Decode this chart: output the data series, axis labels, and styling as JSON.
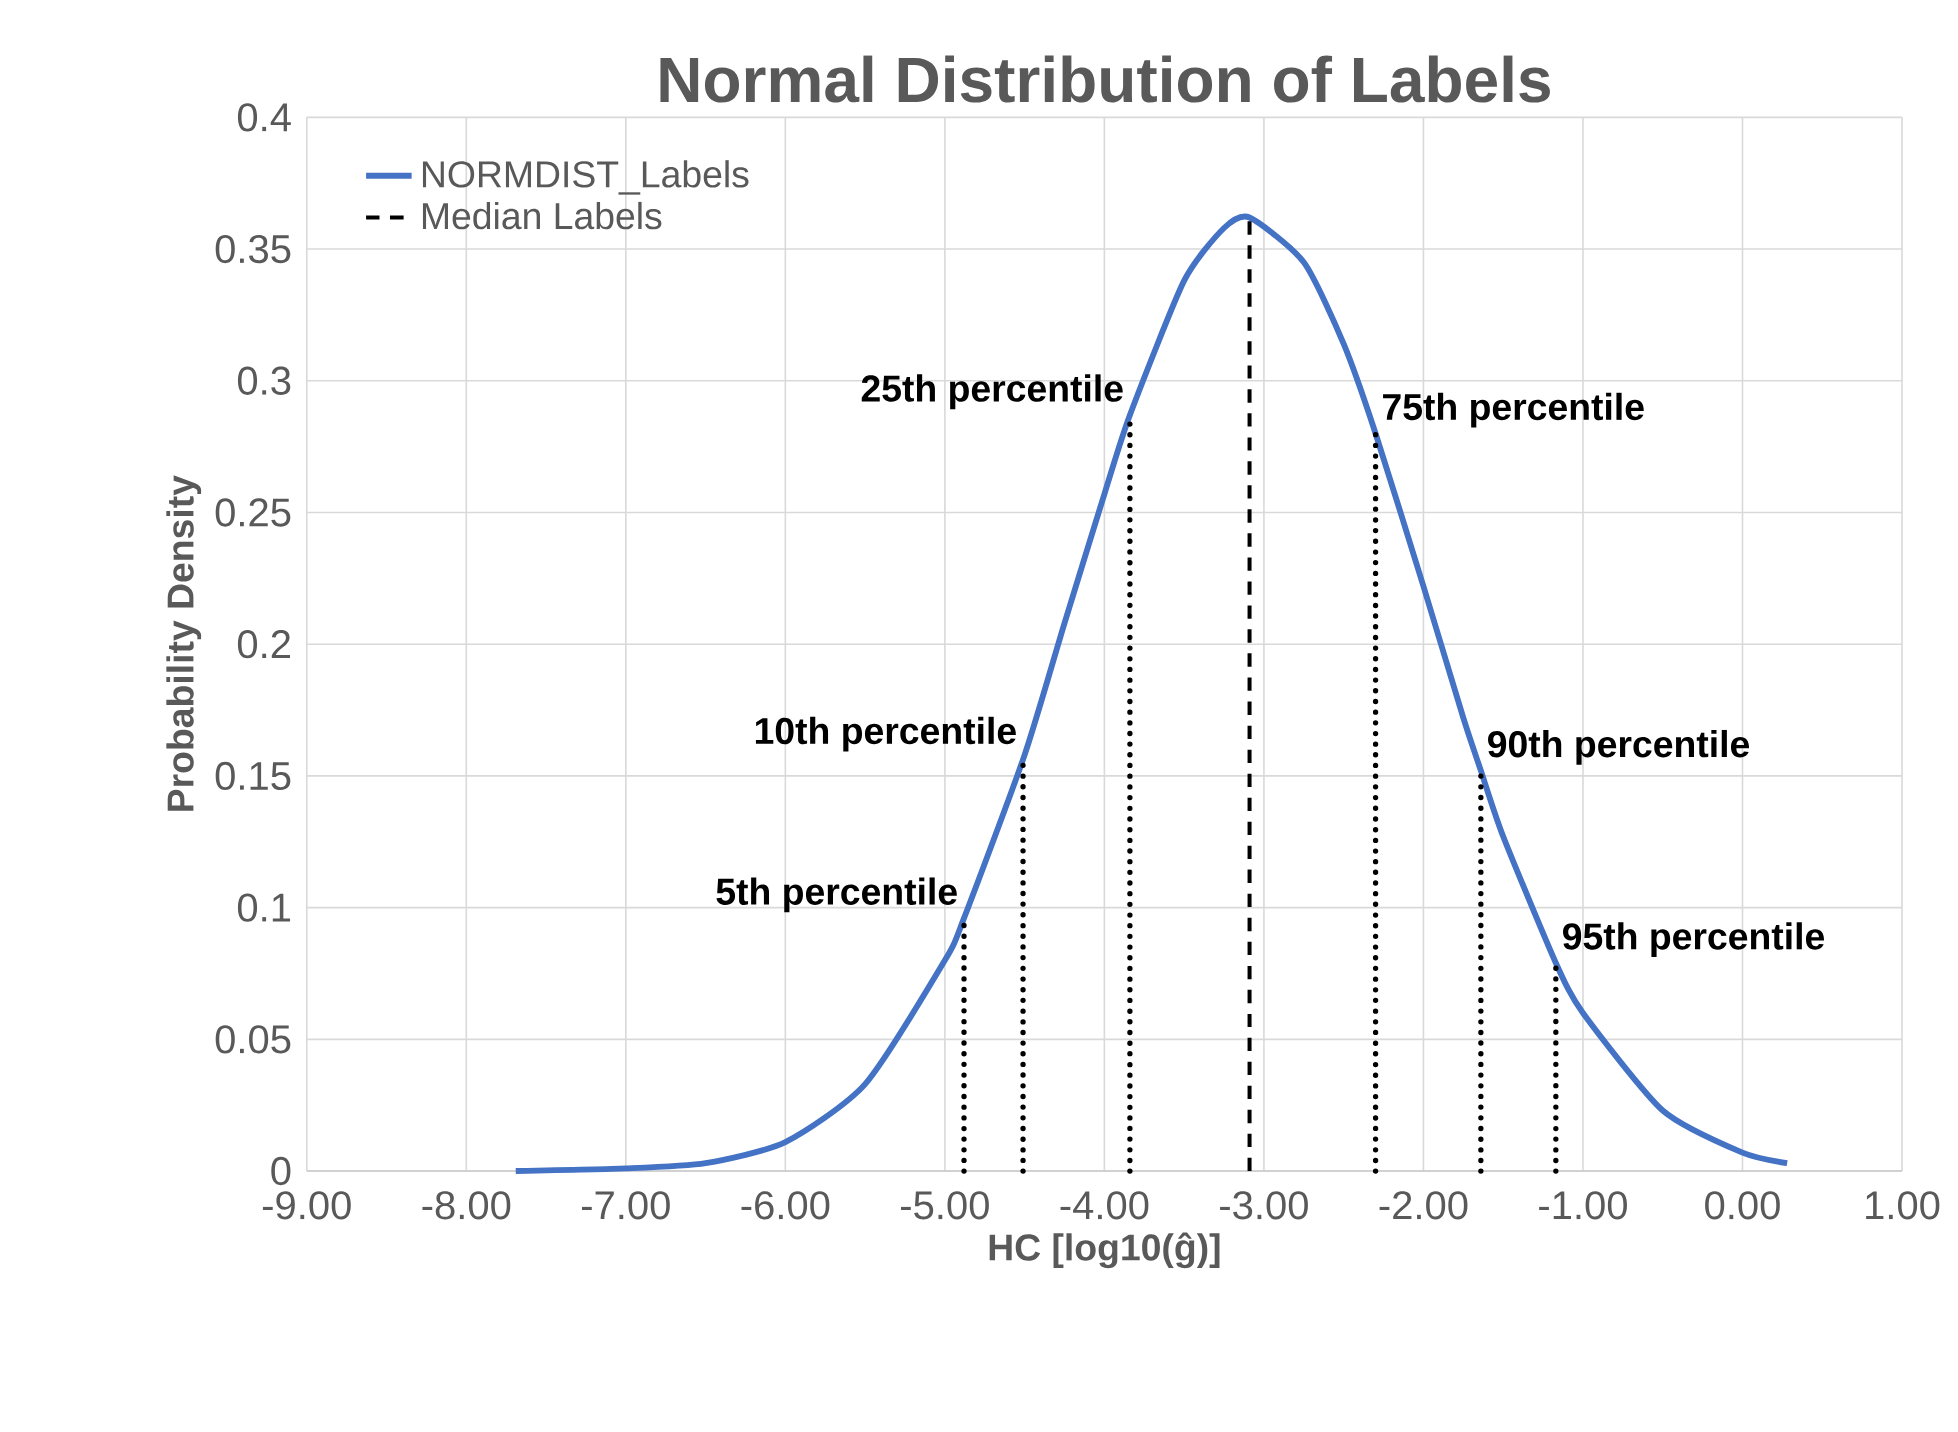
{
  "chart_data": {
    "type": "line",
    "title": "Normal Distribution of Labels",
    "xlabel": "HC [log10(ĝ)]",
    "ylabel": "Probability Density",
    "xlim": [
      -9,
      1
    ],
    "ylim": [
      0,
      0.4
    ],
    "xticks": [
      {
        "value": -9,
        "label": "-9.00"
      },
      {
        "value": -8,
        "label": "-8.00"
      },
      {
        "value": -7,
        "label": "-7.00"
      },
      {
        "value": -6,
        "label": "-6.00"
      },
      {
        "value": -5,
        "label": "-5.00"
      },
      {
        "value": -4,
        "label": "-4.00"
      },
      {
        "value": -3,
        "label": "-3.00"
      },
      {
        "value": -2,
        "label": "-2.00"
      },
      {
        "value": -1,
        "label": "-1.00"
      },
      {
        "value": 0,
        "label": "0.00"
      },
      {
        "value": 1,
        "label": "1.00"
      }
    ],
    "yticks": [
      0,
      0.05,
      0.1,
      0.15,
      0.2,
      0.25,
      0.3,
      0.35,
      0.4
    ],
    "grid": true,
    "legend": "top left",
    "series": [
      {
        "name": "NORMDIST_Labels",
        "color": "#4472c4",
        "line_style": "solid",
        "x": [
          -7.69,
          -7.0,
          -6.5,
          -6.0,
          -5.5,
          -5.0,
          -4.88,
          -4.5,
          -4.25,
          -4.0,
          -3.84,
          -3.5,
          -3.25,
          -3.09,
          -2.75,
          -2.5,
          -2.3,
          -2.0,
          -1.75,
          -1.64,
          -1.5,
          -1.17,
          -1.0,
          -0.5,
          0.0,
          0.28
        ],
        "values": [
          0.0,
          0.001,
          0.003,
          0.011,
          0.033,
          0.08,
          0.096,
          0.158,
          0.208,
          0.257,
          0.287,
          0.338,
          0.358,
          0.362,
          0.345,
          0.314,
          0.28,
          0.222,
          0.172,
          0.152,
          0.127,
          0.079,
          0.06,
          0.023,
          0.007,
          0.003
        ]
      },
      {
        "name": "Median Labels",
        "color": "#000000",
        "line_style": "dashed",
        "x": [
          -3.09,
          -3.09
        ],
        "values": [
          0,
          0.362
        ]
      },
      {
        "color": "#000000",
        "line_style": "dotted",
        "x": [
          -4.88,
          -4.88
        ],
        "values": [
          0,
          0.096
        ]
      },
      {
        "color": "#000000",
        "line_style": "dotted",
        "x": [
          -4.51,
          -4.51
        ],
        "values": [
          0,
          0.157
        ]
      },
      {
        "color": "#000000",
        "line_style": "dotted",
        "x": [
          -3.84,
          -3.84
        ],
        "values": [
          0,
          0.287
        ]
      },
      {
        "color": "#000000",
        "line_style": "dotted",
        "x": [
          -2.3,
          -2.3
        ],
        "values": [
          0,
          0.28
        ]
      },
      {
        "color": "#000000",
        "line_style": "dotted",
        "x": [
          -1.64,
          -1.64
        ],
        "values": [
          0,
          0.152
        ]
      },
      {
        "color": "#000000",
        "line_style": "dotted",
        "x": [
          -1.17,
          -1.17
        ],
        "values": [
          0,
          0.079
        ]
      }
    ],
    "annotations": [
      {
        "text": "5th percentile",
        "x": -4.88,
        "y": 0.096
      },
      {
        "text": "10th percentile",
        "x": -4.51,
        "y": 0.157
      },
      {
        "text": "25th percentile",
        "x": -3.84,
        "y": 0.287
      },
      {
        "text": "75th percentile",
        "x": -2.3,
        "y": 0.28
      },
      {
        "text": "90th percentile",
        "x": -1.64,
        "y": 0.152
      },
      {
        "text": "95th percentile",
        "x": -1.17,
        "y": 0.079
      }
    ]
  }
}
